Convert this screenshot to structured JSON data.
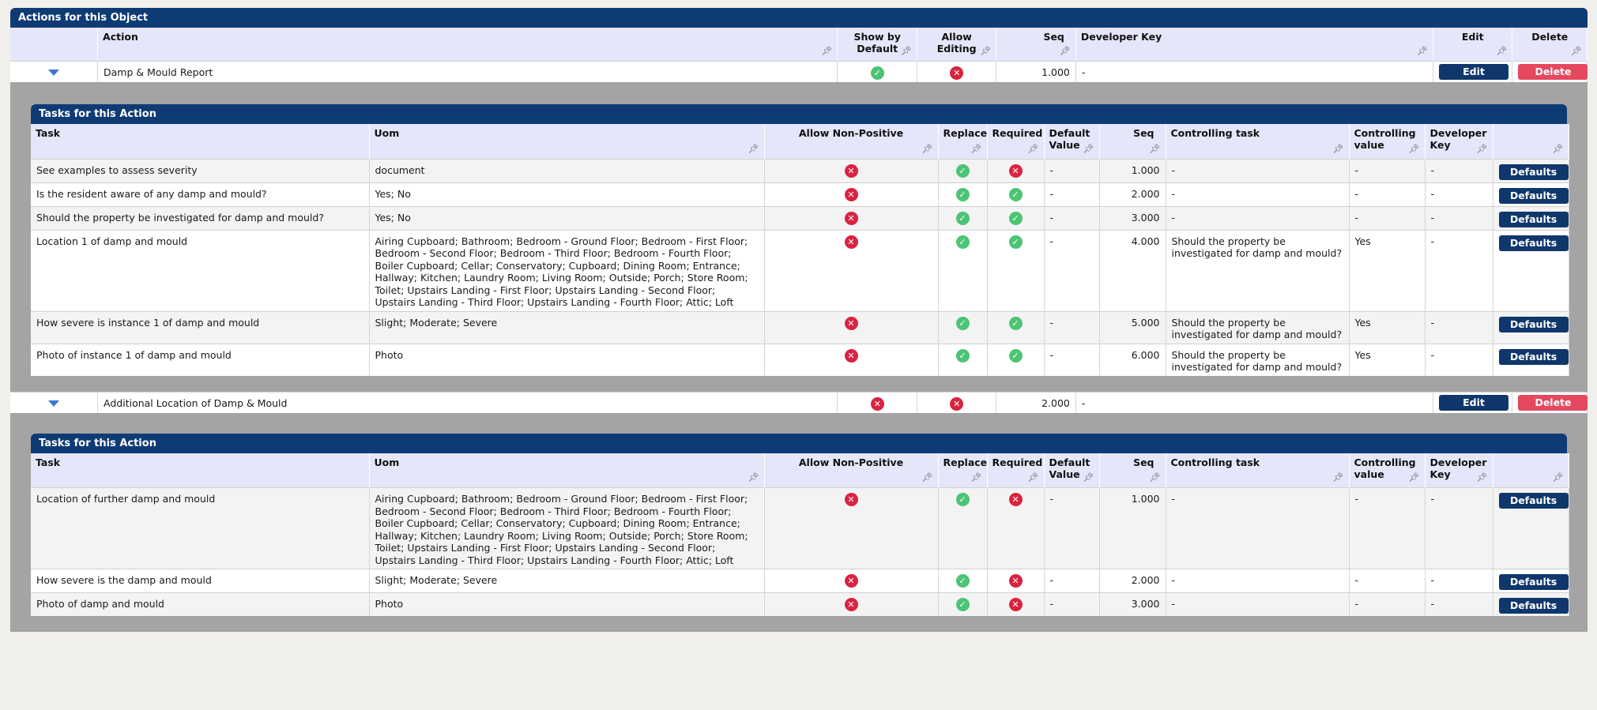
{
  "actions_panel": {
    "title": "Actions for this Object",
    "columns": {
      "action": "Action",
      "show_by_default": "Show by Default",
      "allow_editing": "Allow Editing",
      "seq": "Seq",
      "developer_key": "Developer Key",
      "edit": "Edit",
      "delete": "Delete"
    },
    "pin_icon": "pin-icon",
    "actions": [
      {
        "name": "Damp & Mould Report",
        "show_by_default": true,
        "allow_editing": false,
        "seq": "1.000",
        "developer_key": "-",
        "edit_label": "Edit",
        "delete_label": "Delete"
      },
      {
        "name": "Additional Location of Damp & Mould",
        "show_by_default": false,
        "allow_editing": false,
        "seq": "2.000",
        "developer_key": "-",
        "edit_label": "Edit",
        "delete_label": "Delete"
      }
    ]
  },
  "tasks_columns": {
    "task": "Task",
    "uom": "Uom",
    "allow_non_positive": "Allow Non-Positive",
    "replace": "Replace",
    "required": "Required",
    "default_value": "Default Value",
    "seq": "Seq",
    "controlling_task": "Controlling task",
    "controlling_value": "Controlling value",
    "developer_key": "Developer Key"
  },
  "task_panels": [
    {
      "title": "Tasks for this Action",
      "rows": [
        {
          "task": "See examples to assess severity",
          "uom": "document",
          "allow_non_positive": false,
          "replace": true,
          "required": false,
          "default_value": "-",
          "seq": "1.000",
          "controlling_task": "-",
          "controlling_value": "-",
          "developer_key": "-",
          "button": "Defaults"
        },
        {
          "task": "Is the resident aware of any damp and mould?",
          "uom": "Yes; No",
          "allow_non_positive": false,
          "replace": true,
          "required": true,
          "default_value": "-",
          "seq": "2.000",
          "controlling_task": "-",
          "controlling_value": "-",
          "developer_key": "-",
          "button": "Defaults"
        },
        {
          "task": "Should the property be investigated for damp and mould?",
          "uom": "Yes; No",
          "allow_non_positive": false,
          "replace": true,
          "required": true,
          "default_value": "-",
          "seq": "3.000",
          "controlling_task": "-",
          "controlling_value": "-",
          "developer_key": "-",
          "button": "Defaults"
        },
        {
          "task": "Location 1 of damp and mould",
          "uom": "Airing Cupboard; Bathroom; Bedroom - Ground Floor; Bedroom - First Floor; Bedroom - Second Floor; Bedroom - Third Floor; Bedroom - Fourth Floor; Boiler Cupboard; Cellar; Conservatory; Cupboard; Dining Room; Entrance; Hallway; Kitchen; Laundry Room; Living Room; Outside; Porch; Store Room; Toilet; Upstairs Landing - First Floor; Upstairs Landing - Second Floor; Upstairs Landing - Third Floor; Upstairs Landing - Fourth Floor; Attic; Loft",
          "allow_non_positive": false,
          "replace": true,
          "required": true,
          "default_value": "-",
          "seq": "4.000",
          "controlling_task": "Should the property be investigated for damp and mould?",
          "controlling_value": "Yes",
          "developer_key": "-",
          "button": "Defaults"
        },
        {
          "task": "How severe is instance 1 of damp and mould",
          "uom": "Slight; Moderate; Severe",
          "allow_non_positive": false,
          "replace": true,
          "required": true,
          "default_value": "-",
          "seq": "5.000",
          "controlling_task": "Should the property be investigated for damp and mould?",
          "controlling_value": "Yes",
          "developer_key": "-",
          "button": "Defaults"
        },
        {
          "task": "Photo of instance 1 of damp and mould",
          "uom": "Photo",
          "allow_non_positive": false,
          "replace": true,
          "required": true,
          "default_value": "-",
          "seq": "6.000",
          "controlling_task": "Should the property be investigated for damp and mould?",
          "controlling_value": "Yes",
          "developer_key": "-",
          "button": "Defaults"
        }
      ]
    },
    {
      "title": "Tasks for this Action",
      "rows": [
        {
          "task": "Location of further damp and mould",
          "uom": "Airing Cupboard; Bathroom; Bedroom - Ground Floor; Bedroom - First Floor; Bedroom - Second Floor; Bedroom - Third Floor; Bedroom - Fourth Floor; Boiler Cupboard; Cellar; Conservatory; Cupboard; Dining Room; Entrance; Hallway; Kitchen; Laundry Room; Living Room; Outside; Porch; Store Room; Toilet; Upstairs Landing - First Floor; Upstairs Landing - Second Floor; Upstairs Landing - Third Floor; Upstairs Landing - Fourth Floor; Attic; Loft",
          "allow_non_positive": false,
          "replace": true,
          "required": false,
          "default_value": "-",
          "seq": "1.000",
          "controlling_task": "-",
          "controlling_value": "-",
          "developer_key": "-",
          "button": "Defaults"
        },
        {
          "task": "How severe is the damp and mould",
          "uom": "Slight; Moderate; Severe",
          "allow_non_positive": false,
          "replace": true,
          "required": false,
          "default_value": "-",
          "seq": "2.000",
          "controlling_task": "-",
          "controlling_value": "-",
          "developer_key": "-",
          "button": "Defaults"
        },
        {
          "task": "Photo of damp and mould",
          "uom": "Photo",
          "allow_non_positive": false,
          "replace": true,
          "required": false,
          "default_value": "-",
          "seq": "3.000",
          "controlling_task": "-",
          "controlling_value": "-",
          "developer_key": "-",
          "button": "Defaults"
        }
      ]
    }
  ],
  "icons": {
    "true": "check-icon",
    "false": "cross-icon"
  },
  "colors": {
    "header_navy": "#0f3b74",
    "check_green": "#4cc474",
    "cross_red": "#d9233f",
    "delete_red": "#e5485f"
  }
}
